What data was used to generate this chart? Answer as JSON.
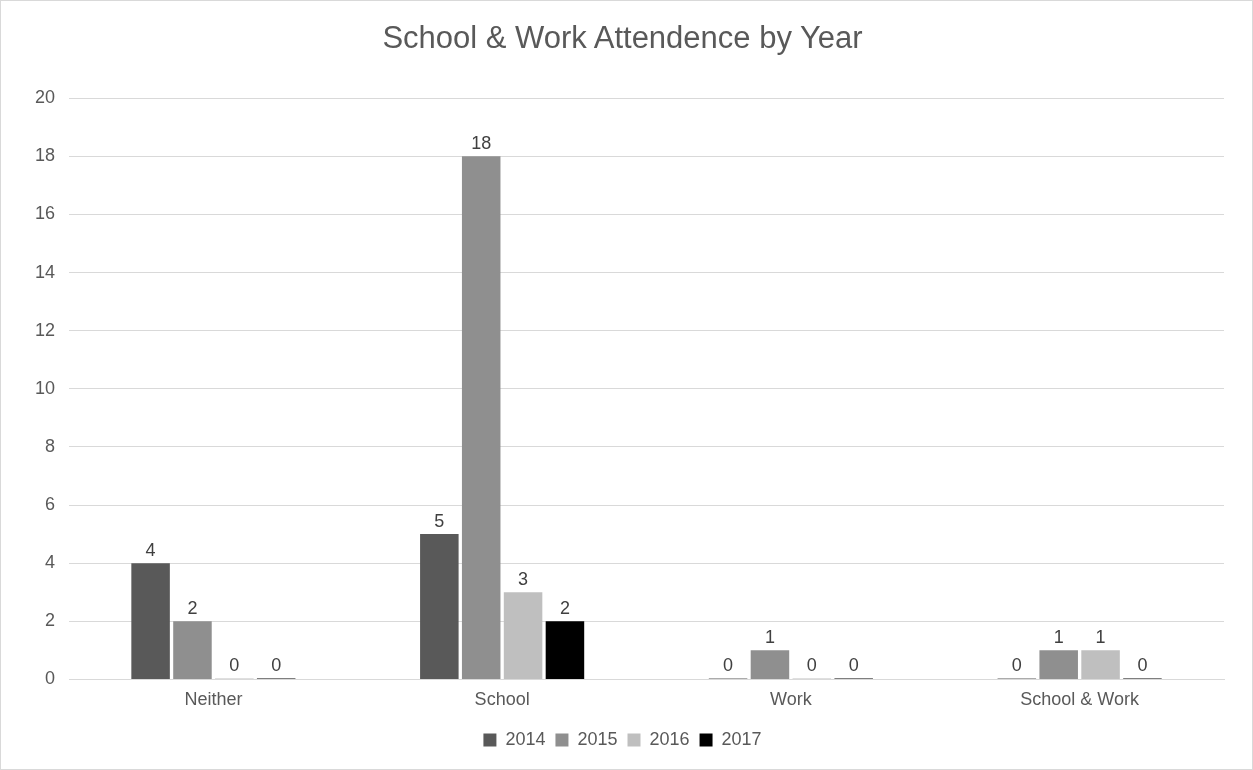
{
  "chart_data": {
    "type": "bar",
    "title": "School & Work Attendence by Year",
    "categories": [
      "Neither",
      "School",
      "Work",
      "School & Work"
    ],
    "series": [
      {
        "name": "2014",
        "color": "#595959",
        "values": [
          4,
          5,
          0,
          0
        ]
      },
      {
        "name": "2015",
        "color": "#8f8f8f",
        "values": [
          2,
          18,
          1,
          1
        ]
      },
      {
        "name": "2016",
        "color": "#bfbfbf",
        "values": [
          0,
          3,
          0,
          1
        ]
      },
      {
        "name": "2017",
        "color": "#000000",
        "values": [
          0,
          2,
          0,
          0
        ]
      }
    ],
    "ylim": [
      0,
      20
    ],
    "yticks": [
      0,
      2,
      4,
      6,
      8,
      10,
      12,
      14,
      16,
      18,
      20
    ],
    "grid": "y",
    "legend": "bottom",
    "data_labels": true
  }
}
